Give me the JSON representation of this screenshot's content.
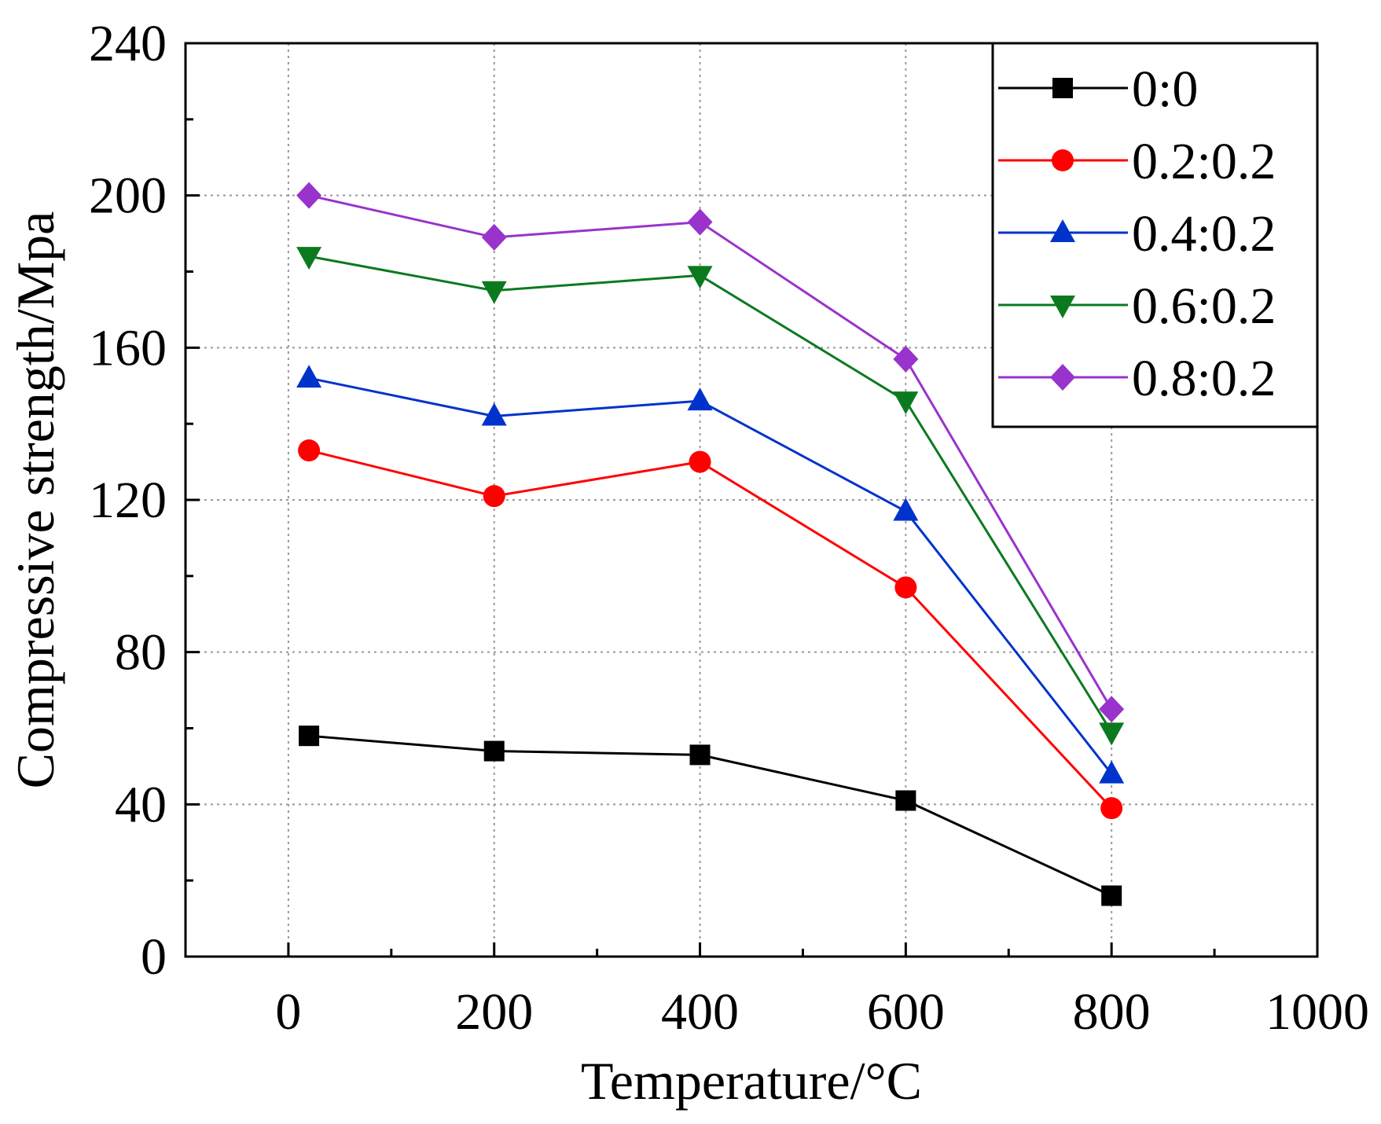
{
  "chart_data": {
    "type": "line",
    "title": "",
    "xlabel": "Temperature/°C",
    "ylabel": "Compressive strength/Mpa",
    "xlim": [
      -100,
      1000
    ],
    "ylim": [
      0,
      240
    ],
    "xticks": [
      0,
      200,
      400,
      600,
      800,
      1000
    ],
    "yticks": [
      0,
      40,
      80,
      120,
      160,
      200,
      240
    ],
    "x_tick_labels": [
      "0",
      "200",
      "400",
      "600",
      "800",
      "1000"
    ],
    "y_tick_labels": [
      "0",
      "40",
      "80",
      "120",
      "160",
      "200",
      "240"
    ],
    "grid": true,
    "legend_position": "top-right",
    "x": [
      20,
      200,
      400,
      600,
      800
    ],
    "series": [
      {
        "name": "0:0",
        "values": [
          58,
          54,
          53,
          41,
          16
        ],
        "color": "#000000",
        "marker": "square"
      },
      {
        "name": "0.2:0.2",
        "values": [
          133,
          121,
          130,
          97,
          39
        ],
        "color": "#ff0000",
        "marker": "circle"
      },
      {
        "name": "0.4:0.2",
        "values": [
          152,
          142,
          146,
          117,
          48
        ],
        "color": "#0033cc",
        "marker": "triangle-up"
      },
      {
        "name": "0.6:0.2",
        "values": [
          184,
          175,
          179,
          146,
          59
        ],
        "color": "#0b7a1f",
        "marker": "triangle-down"
      },
      {
        "name": "0.8:0.2",
        "values": [
          200,
          189,
          193,
          157,
          65
        ],
        "color": "#9933cc",
        "marker": "diamond"
      }
    ]
  }
}
